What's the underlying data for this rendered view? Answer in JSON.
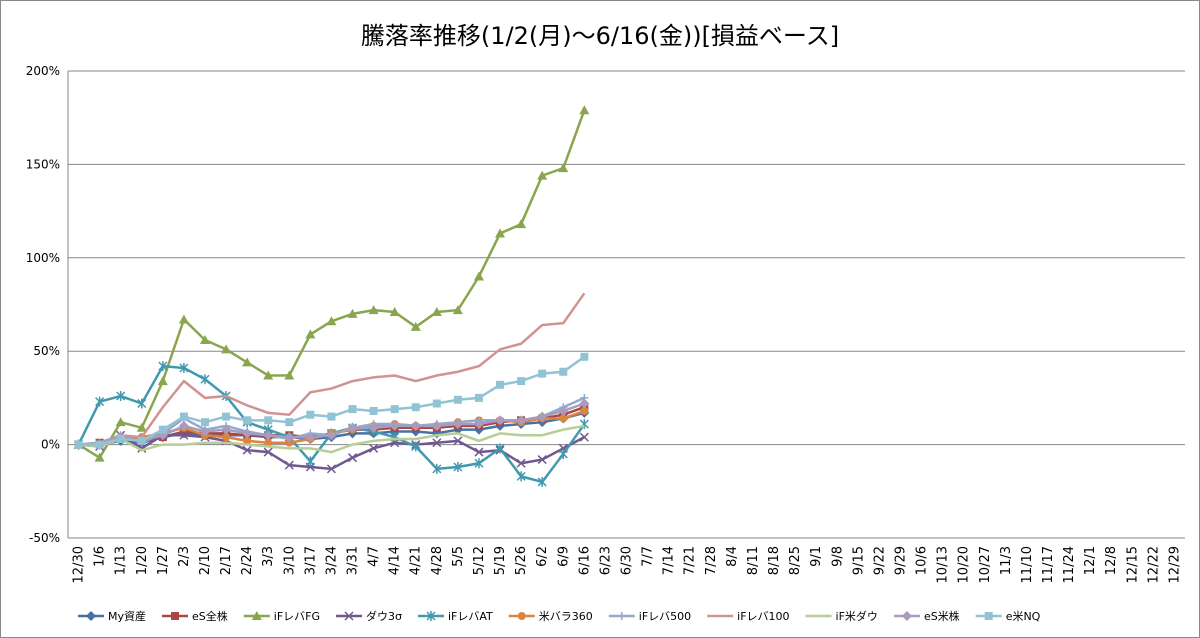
{
  "chart_data": {
    "type": "line",
    "title": "騰落率推移(1/2(月)～6/16(金))[損益ベース]",
    "categories": [
      "12/30",
      "1/6",
      "1/13",
      "1/20",
      "1/27",
      "2/3",
      "2/10",
      "2/17",
      "2/24",
      "3/3",
      "3/10",
      "3/17",
      "3/24",
      "3/31",
      "4/7",
      "4/14",
      "4/21",
      "4/28",
      "5/5",
      "5/12",
      "5/19",
      "5/26",
      "6/2",
      "6/9",
      "6/16",
      "6/23",
      "6/30",
      "7/7",
      "7/14",
      "7/21",
      "7/28",
      "8/4",
      "8/11",
      "8/18",
      "8/25",
      "9/1",
      "9/8",
      "9/15",
      "9/22",
      "9/29",
      "10/6",
      "10/13",
      "10/20",
      "10/27",
      "11/3",
      "11/10",
      "11/17",
      "11/24",
      "12/1",
      "12/8",
      "12/15",
      "12/22",
      "12/29"
    ],
    "ylim": [
      -50,
      200
    ],
    "yticks": [
      {
        "value": -50,
        "label": "-50%"
      },
      {
        "value": 0,
        "label": "0%"
      },
      {
        "value": 50,
        "label": "50%"
      },
      {
        "value": 100,
        "label": "100%"
      },
      {
        "value": 150,
        "label": "150%"
      },
      {
        "value": 200,
        "label": "200%"
      }
    ],
    "grid": true,
    "legend": "bottom",
    "series": [
      {
        "name": "My資産",
        "color": "#4572A7",
        "marker": "diamond",
        "values": [
          0,
          0,
          2,
          1,
          4,
          6,
          5,
          5,
          5,
          4,
          4,
          3,
          4,
          6,
          6,
          7,
          7,
          6,
          8,
          8,
          10,
          11,
          12,
          14,
          17,
          null,
          null,
          null,
          null,
          null,
          null,
          null,
          null,
          null,
          null,
          null,
          null,
          null,
          null,
          null,
          null,
          null,
          null,
          null,
          null,
          null,
          null,
          null,
          null,
          null,
          null,
          null,
          null
        ]
      },
      {
        "name": "eS全株",
        "color": "#AA4643",
        "marker": "square",
        "values": [
          0,
          1,
          3,
          2,
          4,
          7,
          6,
          6,
          5,
          5,
          5,
          4,
          6,
          8,
          8,
          9,
          9,
          9,
          10,
          10,
          12,
          13,
          14,
          16,
          20,
          null,
          null,
          null,
          null,
          null,
          null,
          null,
          null,
          null,
          null,
          null,
          null,
          null,
          null,
          null,
          null,
          null,
          null,
          null,
          null,
          null,
          null,
          null,
          null,
          null,
          null,
          null,
          null
        ]
      },
      {
        "name": "iFレバFG",
        "color": "#89A54E",
        "marker": "triangle",
        "values": [
          0,
          -7,
          12,
          9,
          34,
          67,
          56,
          51,
          44,
          37,
          37,
          59,
          66,
          70,
          72,
          71,
          63,
          71,
          72,
          90,
          113,
          118,
          144,
          148,
          179,
          null,
          null,
          null,
          null,
          null,
          null,
          null,
          null,
          null,
          null,
          null,
          null,
          null,
          null,
          null,
          null,
          null,
          null,
          null,
          null,
          null,
          null,
          null,
          null,
          null,
          null,
          null,
          null
        ]
      },
      {
        "name": "ダウ3σ",
        "color": "#71588F",
        "marker": "x",
        "values": [
          0,
          -1,
          5,
          -2,
          5,
          5,
          4,
          2,
          -3,
          -4,
          -11,
          -12,
          -13,
          -7,
          -2,
          1,
          0,
          1,
          2,
          -4,
          -3,
          -10,
          -8,
          -2,
          4,
          null,
          null,
          null,
          null,
          null,
          null,
          null,
          null,
          null,
          null,
          null,
          null,
          null,
          null,
          null,
          null,
          null,
          null,
          null,
          null,
          null,
          null,
          null,
          null,
          null,
          null,
          null,
          null
        ]
      },
      {
        "name": "iFレバAT",
        "color": "#4198AF",
        "marker": "star",
        "values": [
          0,
          23,
          26,
          22,
          42,
          41,
          35,
          26,
          12,
          8,
          4,
          -9,
          6,
          9,
          7,
          4,
          -1,
          -13,
          -12,
          -10,
          -2,
          -17,
          -20,
          -5,
          11,
          null,
          null,
          null,
          null,
          null,
          null,
          null,
          null,
          null,
          null,
          null,
          null,
          null,
          null,
          null,
          null,
          null,
          null,
          null,
          null,
          null,
          null,
          null,
          null,
          null,
          null,
          null,
          null
        ]
      },
      {
        "name": "米バラ360",
        "color": "#DB843D",
        "marker": "circle",
        "values": [
          0,
          0,
          3,
          4,
          6,
          9,
          5,
          4,
          2,
          1,
          1,
          3,
          6,
          8,
          10,
          11,
          10,
          10,
          12,
          13,
          13,
          12,
          14,
          14,
          18,
          null,
          null,
          null,
          null,
          null,
          null,
          null,
          null,
          null,
          null,
          null,
          null,
          null,
          null,
          null,
          null,
          null,
          null,
          null,
          null,
          null,
          null,
          null,
          null,
          null,
          null,
          null,
          null
        ]
      },
      {
        "name": "iFレバ500",
        "color": "#93A9CF",
        "marker": "plus",
        "values": [
          0,
          1,
          5,
          1,
          6,
          14,
          8,
          10,
          7,
          5,
          3,
          6,
          5,
          9,
          11,
          11,
          10,
          11,
          12,
          13,
          13,
          13,
          15,
          20,
          25,
          null,
          null,
          null,
          null,
          null,
          null,
          null,
          null,
          null,
          null,
          null,
          null,
          null,
          null,
          null,
          null,
          null,
          null,
          null,
          null,
          null,
          null,
          null,
          null,
          null,
          null,
          null,
          null
        ]
      },
      {
        "name": "iFレバ100",
        "color": "#D19392",
        "marker": "none",
        "values": [
          0,
          0,
          5,
          4,
          20,
          34,
          25,
          26,
          21,
          17,
          16,
          28,
          30,
          34,
          36,
          37,
          34,
          37,
          39,
          42,
          51,
          54,
          64,
          65,
          81,
          null,
          null,
          null,
          null,
          null,
          null,
          null,
          null,
          null,
          null,
          null,
          null,
          null,
          null,
          null,
          null,
          null,
          null,
          null,
          null,
          null,
          null,
          null,
          null,
          null,
          null,
          null,
          null
        ]
      },
      {
        "name": "iF米ダウ",
        "color": "#B9CD96",
        "marker": "none",
        "values": [
          0,
          -1,
          3,
          -3,
          0,
          0,
          1,
          1,
          0,
          -1,
          -2,
          -2,
          -4,
          0,
          2,
          3,
          3,
          5,
          6,
          2,
          6,
          5,
          5,
          8,
          10,
          null,
          null,
          null,
          null,
          null,
          null,
          null,
          null,
          null,
          null,
          null,
          null,
          null,
          null,
          null,
          null,
          null,
          null,
          null,
          null,
          null,
          null,
          null,
          null,
          null,
          null,
          null,
          null
        ]
      },
      {
        "name": "eS米株",
        "color": "#A99BBD",
        "marker": "diamond",
        "values": [
          0,
          0,
          4,
          2,
          5,
          10,
          7,
          8,
          6,
          5,
          4,
          4,
          5,
          9,
          9,
          10,
          10,
          10,
          11,
          11,
          13,
          13,
          15,
          18,
          22,
          null,
          null,
          null,
          null,
          null,
          null,
          null,
          null,
          null,
          null,
          null,
          null,
          null,
          null,
          null,
          null,
          null,
          null,
          null,
          null,
          null,
          null,
          null,
          null,
          null,
          null,
          null,
          null
        ]
      },
      {
        "name": "e米NQ",
        "color": "#91C3D5",
        "marker": "square",
        "values": [
          0,
          0,
          3,
          2,
          8,
          15,
          12,
          15,
          13,
          13,
          12,
          16,
          15,
          19,
          18,
          19,
          20,
          22,
          24,
          25,
          32,
          34,
          38,
          39,
          47,
          null,
          null,
          null,
          null,
          null,
          null,
          null,
          null,
          null,
          null,
          null,
          null,
          null,
          null,
          null,
          null,
          null,
          null,
          null,
          null,
          null,
          null,
          null,
          null,
          null,
          null,
          null,
          null
        ]
      }
    ]
  }
}
